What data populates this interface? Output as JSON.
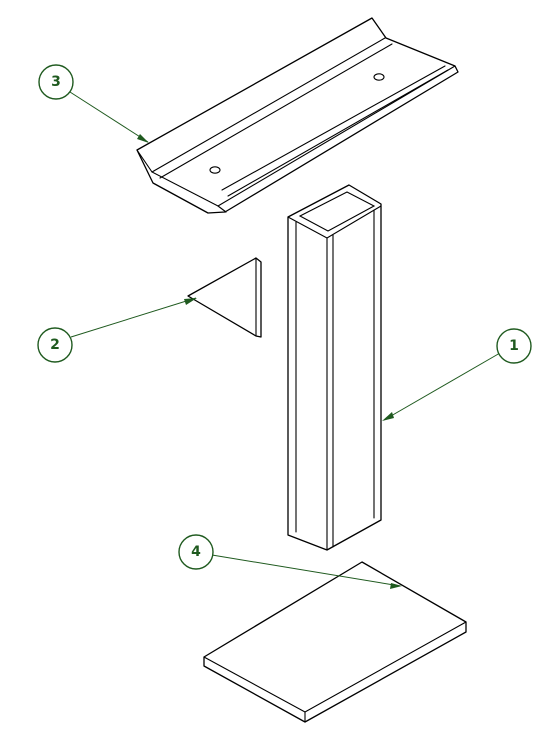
{
  "colors": {
    "balloon": "#1f5a1f",
    "linework": "#000000",
    "background": "#ffffff"
  },
  "balloons": [
    {
      "id": "balloon-1",
      "label": "1",
      "part": "square-tube"
    },
    {
      "id": "balloon-2",
      "label": "2",
      "part": "triangular-gusset"
    },
    {
      "id": "balloon-3",
      "label": "3",
      "part": "channel-bracket"
    },
    {
      "id": "balloon-4",
      "label": "4",
      "part": "base-plate"
    }
  ]
}
